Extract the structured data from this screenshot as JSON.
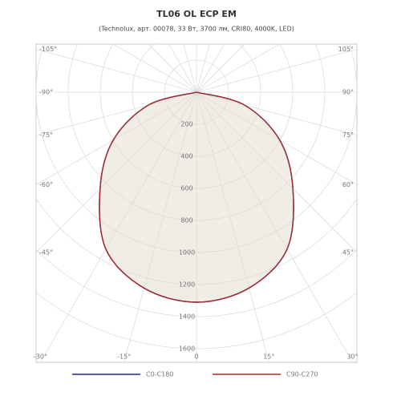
{
  "chart_data": {
    "type": "polar",
    "title": "TL06 OL ECP EM",
    "subtitle": "(Technolux, арт. 00078, 33 Вт, 3700 лм, CRI80, 4000K, LED)",
    "angles": [
      -90,
      -75,
      -60,
      -45,
      -30,
      -15,
      0,
      15,
      30,
      45,
      60,
      75,
      90
    ],
    "series": [
      {
        "name": "C0-C180",
        "color": "#1f2a8a",
        "values": [
          0,
          310,
          600,
          850,
          1130,
          1265,
          1310,
          1265,
          1130,
          850,
          600,
          310,
          0
        ]
      },
      {
        "name": "C90-C270",
        "color": "#a52a2a",
        "values": [
          0,
          310,
          600,
          850,
          1130,
          1265,
          1310,
          1265,
          1130,
          850,
          600,
          310,
          0
        ]
      }
    ],
    "rlim": [
      0,
      1600
    ],
    "rticks": [
      200,
      400,
      600,
      800,
      1000,
      1200,
      1400,
      1600
    ],
    "angle_ticks": [
      {
        "value": -105,
        "label": "-105°"
      },
      {
        "value": -90,
        "label": "-90°"
      },
      {
        "value": -75,
        "label": "-75°"
      },
      {
        "value": -60,
        "label": "-60°"
      },
      {
        "value": -45,
        "label": "-45°"
      },
      {
        "value": -30,
        "label": "-30°"
      },
      {
        "value": -15,
        "label": "-15°"
      },
      0,
      {
        "value": 15,
        "label": "15°"
      },
      {
        "value": 30,
        "label": "30°"
      },
      {
        "value": 45,
        "label": "45°"
      },
      {
        "value": 60,
        "label": "60°"
      },
      {
        "value": 75,
        "label": "75°"
      },
      {
        "value": 90,
        "label": "90°"
      },
      {
        "value": 105,
        "label": "105°"
      }
    ],
    "grid": true
  }
}
